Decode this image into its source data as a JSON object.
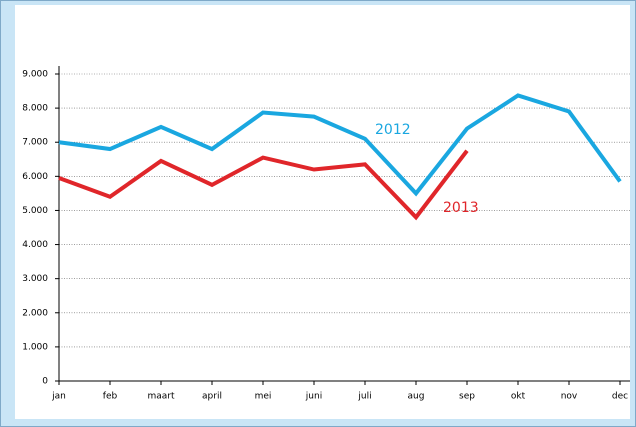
{
  "chart_data": {
    "type": "line",
    "categories": [
      "jan",
      "feb",
      "maart",
      "april",
      "mei",
      "juni",
      "juli",
      "aug",
      "sep",
      "okt",
      "nov",
      "dec"
    ],
    "series": [
      {
        "name": "2012",
        "color": "#1aa7e0",
        "values": [
          7000,
          6800,
          7450,
          6800,
          7870,
          7750,
          7100,
          5500,
          7400,
          8370,
          7900,
          5850
        ]
      },
      {
        "name": "2013",
        "color": "#e0262a",
        "values": [
          5950,
          5400,
          6450,
          5750,
          6550,
          6200,
          6350,
          4800,
          6750,
          null,
          null,
          null
        ]
      }
    ],
    "ylim": [
      0,
      9000
    ],
    "yticks": [
      0,
      {
        "value": 1000,
        "label": "1.000"
      },
      {
        "value": 2000,
        "label": "2.000"
      },
      {
        "value": 3000,
        "label": "3.000"
      },
      {
        "value": 4000,
        "label": "4.000"
      },
      {
        "value": 5000,
        "label": "5.000"
      },
      {
        "value": 6000,
        "label": "6.000"
      },
      {
        "value": 7000,
        "label": "7.000"
      },
      {
        "value": 8000,
        "label": "8.000"
      },
      {
        "value": 9000,
        "label": "9.000"
      }
    ],
    "grid": true
  }
}
